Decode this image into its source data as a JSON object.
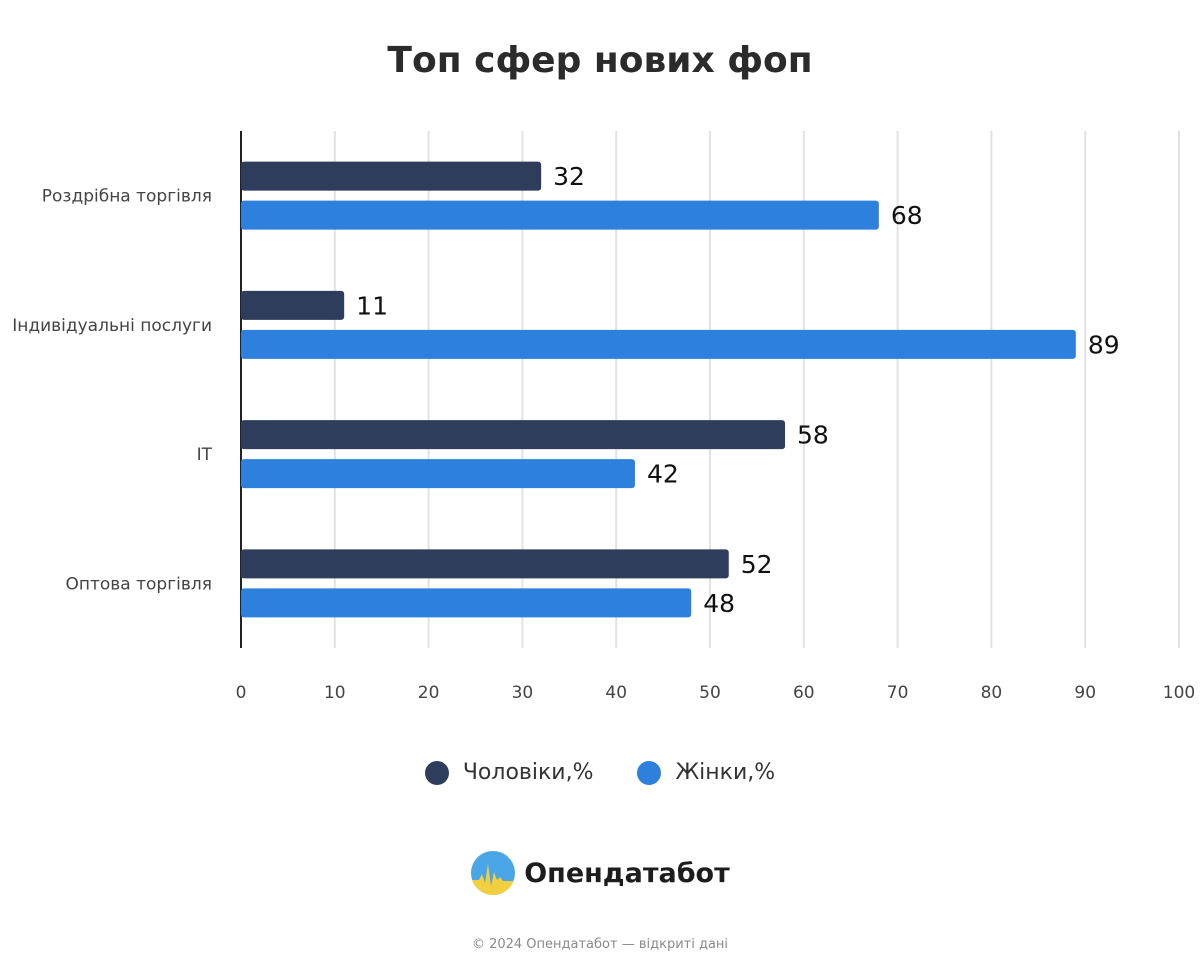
{
  "chart_data": {
    "type": "bar",
    "orientation": "horizontal",
    "title": "Топ сфер нових фоп",
    "categories": [
      "Роздрібна торгівля",
      "Індивідуальні послуги",
      "IT",
      "Оптова торгівля"
    ],
    "series": [
      {
        "name": "Чоловіки,%",
        "color": "#2f3d5c",
        "values": [
          32,
          11,
          58,
          52
        ]
      },
      {
        "name": "Жінки,%",
        "color": "#2d80dc",
        "values": [
          68,
          89,
          42,
          48
        ]
      }
    ],
    "xlim": [
      0,
      100
    ],
    "xticks": [
      0,
      10,
      20,
      30,
      40,
      50,
      60,
      70,
      80,
      90,
      100
    ],
    "grid": true,
    "legend": "bottom"
  },
  "brand": {
    "name": "Опендатабот",
    "logo_icon": "opendatabot-logo-icon"
  },
  "footer": {
    "copyright": "© 2024 Опендатабот — відкриті дані"
  }
}
